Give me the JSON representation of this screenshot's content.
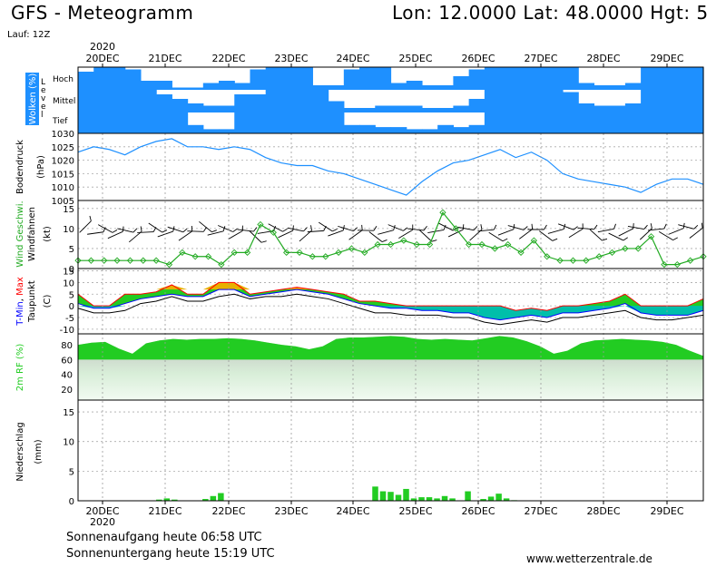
{
  "header": {
    "title": "GFS - Meteogramm",
    "location": "Lon: 12.0000  Lat: 48.0000  Hgt: 5",
    "run": "Lauf: 12Z"
  },
  "footer": {
    "sunrise": "Sonnenaufgang heute 06:58 UTC",
    "sunset": "Sonnenuntergang heute 15:19 UTC",
    "website": "www.wetterzentrale.de"
  },
  "colors": {
    "cloud": "#1e90ff",
    "pressure": "#1e90ff",
    "tmax": "#ff0000",
    "tmin": "#0000ff",
    "humidity": "#22cc22",
    "precip": "#22cc22",
    "wind": "#22aa22"
  },
  "chart_data": [
    {
      "type": "heatmap",
      "panel": "clouds",
      "ylabel": "Wolken (%)",
      "ylabel2": "L e v e l",
      "levels": [
        "Hoch",
        "Mittel",
        "Tief"
      ],
      "x_dates": [
        "20DEC",
        "21DEC",
        "22DEC",
        "23DEC",
        "24DEC",
        "25DEC",
        "26DEC",
        "27DEC",
        "28DEC",
        "29DEC"
      ],
      "x_year": "2020",
      "cover_high_pct": [
        80,
        100,
        100,
        90,
        40,
        40,
        10,
        10,
        30,
        40,
        30,
        90,
        100,
        100,
        100,
        20,
        20,
        90,
        100,
        100,
        30,
        40,
        20,
        20,
        60,
        90,
        100,
        100,
        100,
        100,
        100,
        100,
        30,
        20,
        20,
        30,
        100,
        100,
        100,
        100
      ],
      "cover_mid_pct": [
        100,
        100,
        100,
        100,
        100,
        80,
        60,
        40,
        30,
        30,
        80,
        80,
        100,
        100,
        100,
        100,
        50,
        20,
        20,
        30,
        30,
        30,
        20,
        20,
        30,
        60,
        100,
        100,
        100,
        100,
        100,
        90,
        40,
        30,
        30,
        40,
        100,
        100,
        100,
        100
      ],
      "cover_low_pct": [
        100,
        100,
        100,
        100,
        100,
        100,
        100,
        40,
        20,
        20,
        100,
        100,
        100,
        100,
        100,
        100,
        100,
        40,
        40,
        30,
        30,
        20,
        20,
        40,
        30,
        40,
        100,
        100,
        100,
        100,
        100,
        100,
        100,
        100,
        100,
        100,
        100,
        100,
        100,
        100
      ]
    },
    {
      "type": "line",
      "panel": "pressure",
      "ylabel": "Bodendruck",
      "unit": "(hPa)",
      "ylim": [
        1005,
        1030
      ],
      "yticks": [
        1005,
        1010,
        1015,
        1020,
        1025,
        1030
      ],
      "values": [
        1023,
        1025,
        1024,
        1022,
        1025,
        1027,
        1028,
        1025,
        1025,
        1024,
        1025,
        1024,
        1021,
        1019,
        1018,
        1018,
        1016,
        1015,
        1013,
        1011,
        1009,
        1007,
        1012,
        1016,
        1019,
        1020,
        1022,
        1024,
        1021,
        1023,
        1020,
        1015,
        1013,
        1012,
        1011,
        1010,
        1008,
        1011,
        1013,
        1013,
        1011
      ]
    },
    {
      "type": "line",
      "panel": "wind",
      "ylabel": "Wind Geschwi.",
      "ylabel2": "Windfahnen",
      "unit": "(kt)",
      "ylim": [
        0,
        17
      ],
      "yticks": [
        0,
        5,
        10,
        15
      ],
      "values": [
        2,
        2,
        2,
        2,
        2,
        2,
        2,
        1,
        4,
        3,
        3,
        1,
        4,
        4,
        11,
        9,
        4,
        4,
        3,
        3,
        4,
        5,
        4,
        6,
        6,
        7,
        6,
        6,
        14,
        10,
        6,
        6,
        5,
        6,
        4,
        7,
        3,
        2,
        2,
        2,
        3,
        4,
        5,
        5,
        8,
        1,
        1,
        2,
        3
      ]
    },
    {
      "type": "area",
      "panel": "temperature",
      "ylabel": "T-Min, Max",
      "ylabel2": "Taupunkt",
      "unit": "(C)",
      "ylim": [
        -12,
        16
      ],
      "yticks": [
        -10,
        -5,
        0,
        5,
        10,
        15
      ],
      "series": [
        {
          "name": "Max",
          "values": [
            5,
            0,
            0,
            5,
            5,
            6,
            9,
            5,
            5,
            10,
            10,
            5,
            6,
            7,
            8,
            7,
            6,
            5,
            2,
            2,
            1,
            0,
            0,
            0,
            0,
            0,
            0,
            0,
            -2,
            -1,
            -2,
            0,
            0,
            1,
            2,
            5,
            0,
            0,
            0,
            0,
            3
          ]
        },
        {
          "name": "Min",
          "values": [
            1,
            -1,
            -1,
            1,
            3,
            4,
            5,
            4,
            4,
            7,
            7,
            4,
            5,
            6,
            7,
            6,
            5,
            3,
            1,
            0,
            -1,
            -1,
            -2,
            -2,
            -3,
            -3,
            -5,
            -6,
            -5,
            -4,
            -5,
            -3,
            -3,
            -2,
            -1,
            1,
            -3,
            -4,
            -4,
            -4,
            -2
          ]
        },
        {
          "name": "Taupunkt",
          "values": [
            -1,
            -3,
            -3,
            -2,
            1,
            2,
            4,
            2,
            2,
            4,
            5,
            3,
            4,
            4,
            5,
            4,
            3,
            1,
            -1,
            -3,
            -3,
            -4,
            -4,
            -4,
            -5,
            -5,
            -7,
            -8,
            -7,
            -6,
            -7,
            -5,
            -5,
            -4,
            -3,
            -2,
            -5,
            -6,
            -6,
            -5,
            -4
          ]
        }
      ]
    },
    {
      "type": "area",
      "panel": "humidity",
      "ylabel": "2m RF (%)",
      "ylim": [
        5,
        95
      ],
      "yticks": [
        20,
        40,
        60,
        80
      ],
      "values": [
        80,
        83,
        84,
        75,
        68,
        82,
        86,
        88,
        87,
        88,
        88,
        89,
        88,
        86,
        83,
        80,
        78,
        74,
        78,
        88,
        90,
        90,
        91,
        92,
        91,
        88,
        87,
        88,
        87,
        86,
        89,
        92,
        90,
        85,
        78,
        68,
        72,
        82,
        86,
        87,
        88,
        87,
        86,
        84,
        80,
        72,
        65
      ]
    },
    {
      "type": "bar",
      "panel": "precipitation",
      "ylabel": "Niederschlag",
      "unit": "(mm)",
      "ylim": [
        0,
        17
      ],
      "yticks": [
        0,
        5,
        10,
        15
      ],
      "values": [
        0,
        0,
        0,
        0,
        0,
        0,
        0,
        0,
        0,
        0,
        0.2,
        0.4,
        0.2,
        0,
        0,
        0,
        0.3,
        0.8,
        1.3,
        0,
        0,
        0,
        0,
        0,
        0,
        0,
        0,
        0,
        0,
        0,
        0,
        0,
        0,
        0,
        0,
        0,
        0,
        0,
        2.4,
        1.6,
        1.5,
        1.0,
        2.0,
        0.4,
        0.6,
        0.6,
        0.4,
        0.8,
        0.4,
        0,
        1.6,
        0,
        0.3,
        0.7,
        1.2,
        0.4,
        0.1,
        0,
        0,
        0,
        0,
        0,
        0,
        0,
        0,
        0,
        0,
        0,
        0,
        0,
        0,
        0,
        0,
        0,
        0,
        0,
        0,
        0,
        0,
        0,
        0
      ]
    }
  ]
}
